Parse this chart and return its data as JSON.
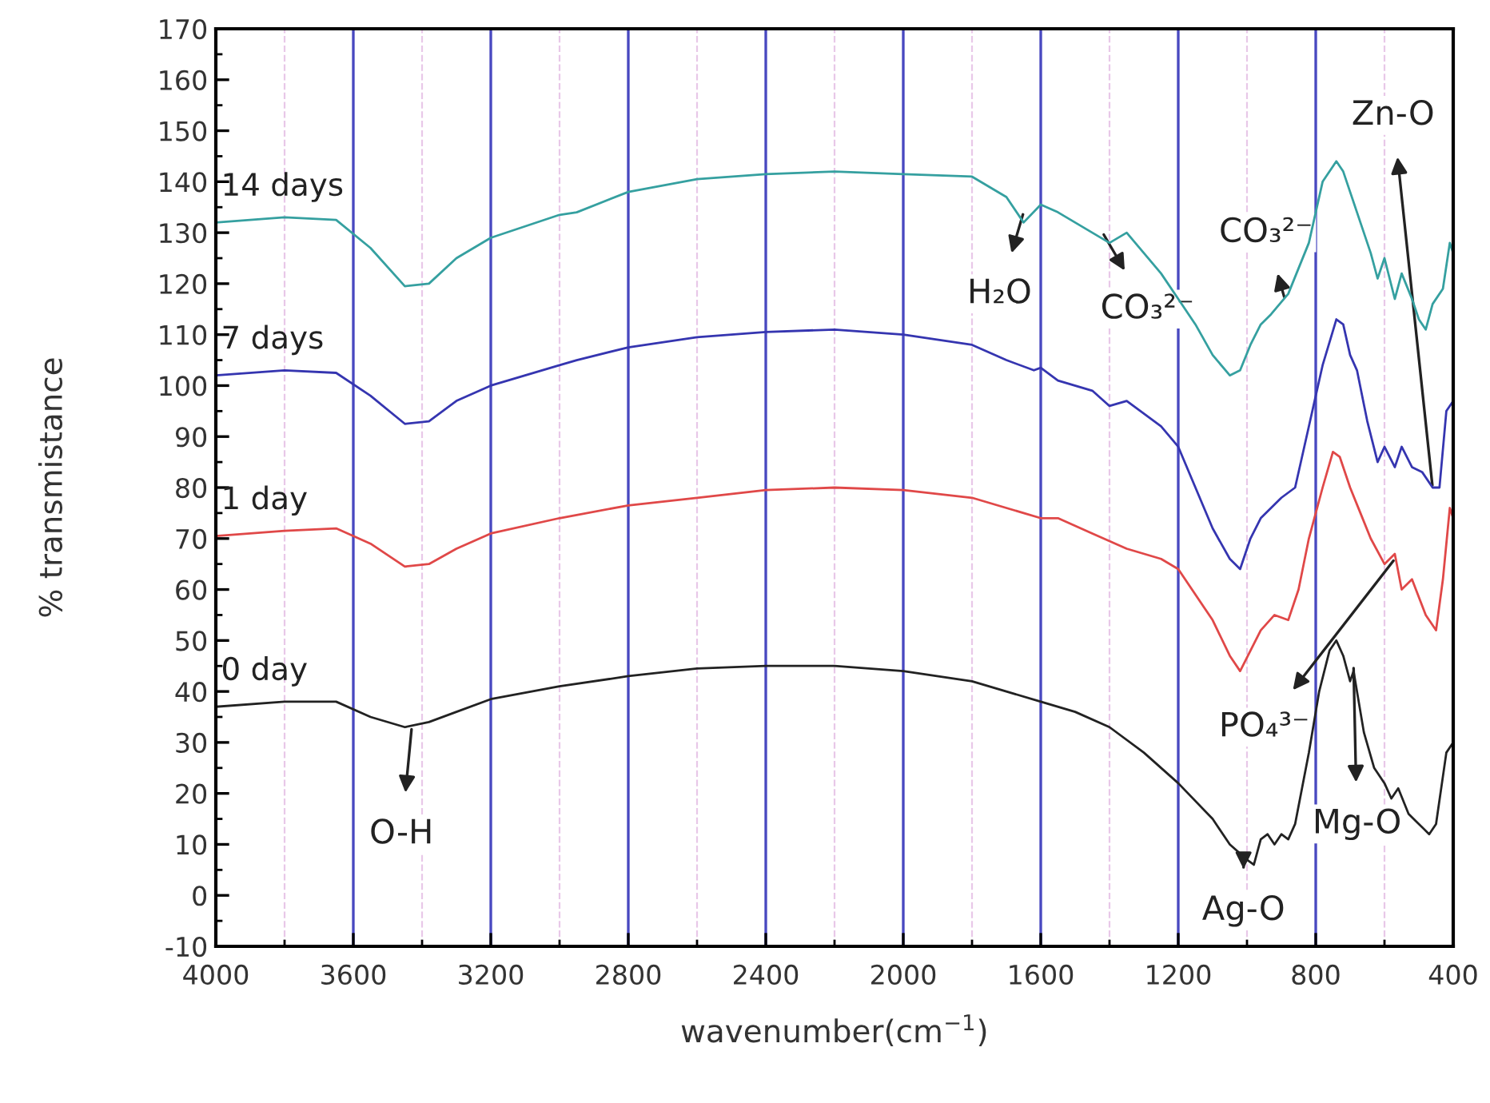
{
  "chart_data": {
    "type": "line",
    "xlabel": "wavenumber(cm$^{−1}$)",
    "ylabel": "% transmistance",
    "xlim": [
      4000,
      400
    ],
    "xticks": [
      4000,
      3600,
      3200,
      2800,
      2400,
      2000,
      1600,
      1200,
      800,
      400
    ],
    "ylim": [
      -10,
      170
    ],
    "yticks": [
      -10,
      0,
      10,
      20,
      30,
      40,
      50,
      60,
      70,
      80,
      90,
      100,
      110,
      120,
      130,
      140,
      150,
      160,
      170
    ],
    "grid": "x",
    "legend": false,
    "marker": "none",
    "line_style": "solid",
    "series": [
      {
        "name": "0 day",
        "color": "#222222",
        "x": [
          4000,
          3800,
          3650,
          3550,
          3450,
          3380,
          3300,
          3200,
          3000,
          2800,
          2600,
          2400,
          2200,
          2000,
          1800,
          1600,
          1500,
          1400,
          1300,
          1200,
          1100,
          1050,
          1000,
          980,
          960,
          940,
          920,
          900,
          880,
          860,
          820,
          790,
          760,
          740,
          720,
          700,
          690,
          660,
          630,
          600,
          580,
          560,
          530,
          500,
          470,
          450,
          420,
          400
        ],
        "values": [
          37,
          38,
          38,
          35,
          33,
          34,
          36,
          38.5,
          41,
          43,
          44.5,
          45,
          45,
          44,
          42,
          38,
          36,
          33,
          28,
          22,
          15,
          10,
          7,
          6,
          11,
          12,
          10,
          12,
          11,
          14,
          28,
          40,
          48,
          50,
          47,
          42,
          44,
          32,
          25,
          22,
          19,
          21,
          16,
          14,
          12,
          14,
          28,
          30
        ]
      },
      {
        "name": "1 day",
        "color": "#e04848",
        "x": [
          4000,
          3800,
          3650,
          3550,
          3450,
          3380,
          3300,
          3200,
          3000,
          2800,
          2600,
          2400,
          2200,
          2000,
          1800,
          1650,
          1600,
          1550,
          1450,
          1350,
          1250,
          1200,
          1100,
          1050,
          1020,
          990,
          960,
          920,
          880,
          850,
          820,
          780,
          750,
          730,
          700,
          670,
          640,
          600,
          570,
          550,
          520,
          480,
          450,
          430,
          410,
          400
        ],
        "values": [
          70.5,
          71.5,
          72,
          69,
          64.5,
          65,
          68,
          71,
          74,
          76.5,
          78,
          79.5,
          80,
          79.5,
          78,
          75,
          74,
          74,
          71,
          68,
          66,
          64,
          54,
          47,
          44,
          48,
          52,
          55,
          54,
          60,
          70,
          80,
          87,
          86,
          80,
          75,
          70,
          65,
          67,
          60,
          62,
          55,
          52,
          62,
          76,
          74
        ]
      },
      {
        "name": "7 days",
        "color": "#3535b0",
        "x": [
          4000,
          3800,
          3650,
          3550,
          3450,
          3380,
          3300,
          3200,
          3000,
          2950,
          2800,
          2600,
          2400,
          2200,
          2000,
          1800,
          1700,
          1620,
          1600,
          1550,
          1450,
          1400,
          1350,
          1250,
          1200,
          1150,
          1100,
          1050,
          1020,
          990,
          960,
          930,
          900,
          860,
          820,
          780,
          740,
          720,
          700,
          680,
          650,
          620,
          600,
          570,
          550,
          520,
          490,
          460,
          440,
          420,
          400
        ],
        "values": [
          102,
          103,
          102.5,
          98,
          92.5,
          93,
          97,
          100,
          104,
          105,
          107.5,
          109.5,
          110.5,
          111,
          110,
          108,
          105,
          103,
          103.5,
          101,
          99,
          96,
          97,
          92,
          88,
          80,
          72,
          66,
          64,
          70,
          74,
          76,
          78,
          80,
          92,
          104,
          113,
          112,
          106,
          103,
          93,
          85,
          88,
          84,
          88,
          84,
          83,
          80,
          80,
          95,
          97
        ]
      },
      {
        "name": "14 days",
        "color": "#35a0a0",
        "x": [
          4000,
          3800,
          3650,
          3550,
          3450,
          3380,
          3300,
          3200,
          3000,
          2950,
          2800,
          2600,
          2400,
          2200,
          2000,
          1800,
          1700,
          1650,
          1600,
          1550,
          1450,
          1400,
          1350,
          1250,
          1200,
          1150,
          1100,
          1050,
          1020,
          990,
          960,
          930,
          880,
          820,
          780,
          740,
          720,
          700,
          680,
          640,
          620,
          600,
          570,
          550,
          520,
          500,
          480,
          460,
          430,
          410,
          400
        ],
        "values": [
          132,
          133,
          132.5,
          127,
          119.5,
          120,
          125,
          129,
          133.5,
          134,
          138,
          140.5,
          141.5,
          142,
          141.5,
          141,
          137,
          132,
          135.5,
          134,
          130,
          128,
          130,
          122,
          117,
          112,
          106,
          102,
          103,
          108,
          112,
          114,
          118,
          128,
          140,
          144,
          142,
          138,
          134,
          126,
          121,
          125,
          117,
          122,
          117,
          113,
          111,
          116,
          119,
          128,
          126
        ]
      }
    ],
    "annotations": [
      {
        "text": "O-H",
        "x": 3430,
        "y": 33
      },
      {
        "text": "H₂O",
        "x": 1650,
        "y": 134
      },
      {
        "text": "CO₃²⁻",
        "x": 1420,
        "y": 130
      },
      {
        "text": "CO₃²⁻",
        "x": 890,
        "y": 117
      },
      {
        "text": "Zn-O",
        "x": 460,
        "y": 80
      },
      {
        "text": "PO₄³⁻",
        "x": 570,
        "y": 66
      },
      {
        "text": "Mg-O",
        "x": 690,
        "y": 45
      },
      {
        "text": "Ag-O",
        "x": 1010,
        "y": 6
      }
    ]
  }
}
